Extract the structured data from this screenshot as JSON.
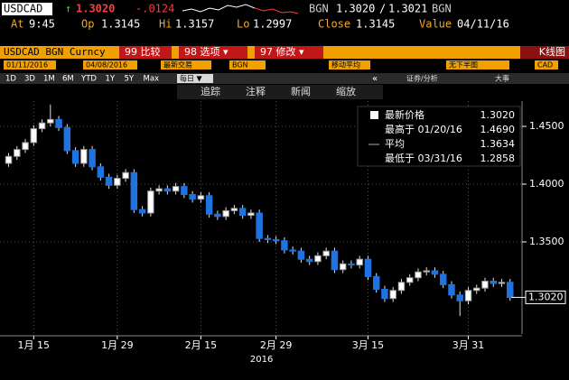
{
  "header": {
    "ticker": "USDCAD",
    "arrow": "↑",
    "last": "1.3020",
    "change": "-.0124",
    "bid_source": "BGN",
    "bid": "1.3020",
    "separator": "/",
    "ask": "1.3021",
    "ask_source": "BGN",
    "quote_row": [
      [
        "At",
        "9:45"
      ],
      [
        "Op",
        "1.3145"
      ],
      [
        "Hi",
        "1.3157"
      ],
      [
        "Lo",
        "1.2997"
      ],
      [
        "Close",
        "1.3145"
      ],
      [
        "Value",
        "04/11/16"
      ]
    ]
  },
  "menu": {
    "security": "USDCAD BGN Curncy",
    "items": [
      "99 比较",
      "98 选项 ▾",
      "97 修改 ▾"
    ],
    "chart_type": "K线图"
  },
  "settings": {
    "start": "01/11/2016",
    "end": "04/08/2016",
    "field": "最新交易",
    "source": "BGN",
    "overlay": "移动平均",
    "lower": "无下半图",
    "currency": "CAD"
  },
  "toolbar": {
    "ranges": [
      "1D",
      "3D",
      "1M",
      "6M",
      "YTD",
      "1Y",
      "5Y",
      "Max"
    ],
    "period": "每日 ▼",
    "back": "«",
    "analysis": "证券/分析",
    "events": "大事"
  },
  "tools": [
    "追踪",
    "注释",
    "新闻",
    "缩放"
  ],
  "info_box": {
    "rows": [
      [
        "最新价格",
        "1.3020"
      ],
      [
        "最高于 01/20/16",
        "1.4690"
      ],
      [
        "平均",
        "1.3634"
      ],
      [
        "最低于 03/31/16",
        "1.2858"
      ]
    ]
  },
  "chart_data": {
    "type": "candlestick",
    "open": [
      1.418,
      1.424,
      1.43,
      1.436,
      1.448,
      1.453,
      1.456,
      1.449,
      1.429,
      1.418,
      1.43,
      1.415,
      1.406,
      1.399,
      1.405,
      1.41,
      1.378,
      1.375,
      1.394,
      1.396,
      1.394,
      1.398,
      1.391,
      1.387,
      1.39,
      1.374,
      1.372,
      1.377,
      1.379,
      1.373,
      1.375,
      1.353,
      1.352,
      1.351,
      1.343,
      1.342,
      1.335,
      1.333,
      1.338,
      1.342,
      1.326,
      1.331,
      1.33,
      1.335,
      1.32,
      1.309,
      1.301,
      1.308,
      1.315,
      1.319,
      1.324,
      1.325,
      1.322,
      1.313,
      1.304,
      1.299,
      1.308,
      1.31,
      1.316,
      1.314,
      1.315
    ],
    "high": [
      1.427,
      1.433,
      1.439,
      1.451,
      1.456,
      1.469,
      1.459,
      1.452,
      1.432,
      1.433,
      1.433,
      1.418,
      1.409,
      1.408,
      1.413,
      1.413,
      1.381,
      1.397,
      1.399,
      1.399,
      1.401,
      1.401,
      1.394,
      1.393,
      1.393,
      1.377,
      1.38,
      1.382,
      1.382,
      1.378,
      1.378,
      1.356,
      1.355,
      1.354,
      1.346,
      1.345,
      1.338,
      1.341,
      1.345,
      1.345,
      1.334,
      1.334,
      1.338,
      1.338,
      1.323,
      1.312,
      1.311,
      1.318,
      1.322,
      1.327,
      1.328,
      1.328,
      1.325,
      1.316,
      1.307,
      1.311,
      1.313,
      1.319,
      1.319,
      1.318,
      1.318
    ],
    "low": [
      1.415,
      1.421,
      1.427,
      1.433,
      1.445,
      1.45,
      1.446,
      1.426,
      1.415,
      1.415,
      1.412,
      1.403,
      1.396,
      1.396,
      1.402,
      1.375,
      1.372,
      1.372,
      1.391,
      1.391,
      1.391,
      1.388,
      1.384,
      1.384,
      1.371,
      1.369,
      1.369,
      1.374,
      1.37,
      1.37,
      1.35,
      1.349,
      1.348,
      1.34,
      1.339,
      1.332,
      1.33,
      1.33,
      1.335,
      1.323,
      1.323,
      1.327,
      1.327,
      1.317,
      1.306,
      1.298,
      1.298,
      1.305,
      1.312,
      1.316,
      1.321,
      1.319,
      1.31,
      1.301,
      1.2858,
      1.296,
      1.305,
      1.307,
      1.311,
      1.311,
      1.299
    ],
    "close": [
      1.424,
      1.43,
      1.436,
      1.448,
      1.453,
      1.456,
      1.449,
      1.429,
      1.418,
      1.43,
      1.415,
      1.406,
      1.399,
      1.405,
      1.41,
      1.378,
      1.375,
      1.394,
      1.396,
      1.394,
      1.398,
      1.391,
      1.387,
      1.39,
      1.374,
      1.372,
      1.377,
      1.379,
      1.373,
      1.375,
      1.353,
      1.352,
      1.351,
      1.343,
      1.342,
      1.335,
      1.333,
      1.338,
      1.342,
      1.326,
      1.331,
      1.33,
      1.335,
      1.32,
      1.309,
      1.301,
      1.308,
      1.315,
      1.319,
      1.324,
      1.325,
      1.322,
      1.313,
      1.304,
      1.299,
      1.308,
      1.31,
      1.316,
      1.314,
      1.315,
      1.302
    ],
    "up_color": "#ffffff",
    "down_color": "#1f73e0",
    "ylim": [
      1.2703,
      1.4719
    ],
    "yticks": [
      {
        "value": 1.35,
        "label": "1.3500"
      },
      {
        "value": 1.4,
        "label": "1.4000"
      },
      {
        "value": 1.45,
        "label": "1.4500"
      }
    ],
    "xlim": [
      -0.6,
      61
    ],
    "xticks": [
      {
        "value": 3,
        "label": "1月 15"
      },
      {
        "value": 13,
        "label": "1月 29"
      },
      {
        "value": 23,
        "label": "2月 15"
      },
      {
        "value": 32,
        "label": "2月 29"
      },
      {
        "value": 43,
        "label": "3月 15"
      },
      {
        "value": 55,
        "label": "3月 31"
      }
    ],
    "x_label": "2016",
    "last_label": "1.3020",
    "grid": true
  }
}
